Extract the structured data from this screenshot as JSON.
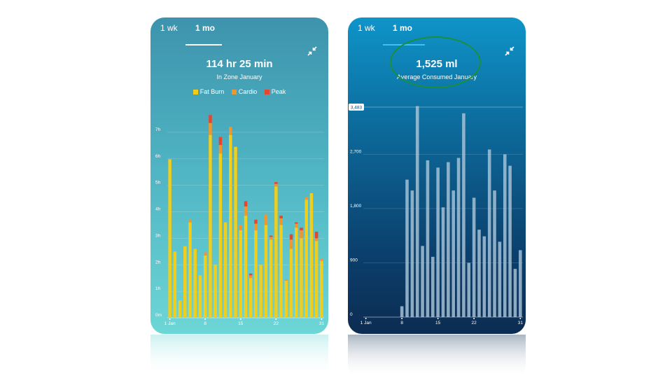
{
  "left_panel": {
    "tabs": [
      "1 wk",
      "1 mo"
    ],
    "headline": "114 hr 25 min",
    "subtitle": "In Zone January",
    "legend": [
      {
        "label": "Fat Burn",
        "color": "#f1cd1c"
      },
      {
        "label": "Cardio",
        "color": "#f0962e"
      },
      {
        "label": "Peak",
        "color": "#e4462f"
      }
    ]
  },
  "right_panel": {
    "tabs": [
      "1 wk",
      "1 mo"
    ],
    "headline": "1,525 ml",
    "subtitle": "Average Consumed January",
    "marker_label": "3,483",
    "bar_color": "#a8c4d8"
  },
  "chart_data": [
    {
      "type": "bar",
      "stacked": true,
      "x": [
        1,
        2,
        3,
        4,
        5,
        6,
        7,
        8,
        9,
        10,
        11,
        12,
        13,
        14,
        15,
        16,
        17,
        18,
        19,
        20,
        21,
        22,
        23,
        24,
        25,
        26,
        27,
        28,
        29,
        30,
        31
      ],
      "series": [
        {
          "name": "Fat Burn",
          "values": [
            5.98,
            2.5,
            0.65,
            2.7,
            3.6,
            2.6,
            1.6,
            2.35,
            6.9,
            2.0,
            6.2,
            3.6,
            6.9,
            6.45,
            3.3,
            3.85,
            1.5,
            3.3,
            2.0,
            3.5,
            2.95,
            4.95,
            3.5,
            1.4,
            2.6,
            3.4,
            3.0,
            4.45,
            4.7,
            2.9,
            2.15
          ]
        },
        {
          "name": "Cardio",
          "values": [
            0,
            0,
            0,
            0,
            0.1,
            0,
            0,
            0.12,
            0.45,
            0,
            0.32,
            0,
            0.3,
            0,
            0.2,
            0.35,
            0.1,
            0.25,
            0,
            0.4,
            0.1,
            0.1,
            0.25,
            0.05,
            0.35,
            0.15,
            0.3,
            0.1,
            0,
            0.1,
            0.07
          ]
        },
        {
          "name": "Peak",
          "values": [
            0,
            0,
            0,
            0,
            0,
            0,
            0,
            0,
            0.3,
            0,
            0.3,
            0,
            0,
            0,
            0,
            0.2,
            0.07,
            0.15,
            0,
            0,
            0.05,
            0.07,
            0.1,
            0,
            0.2,
            0.05,
            0.1,
            0,
            0,
            0.25,
            0
          ]
        }
      ],
      "y_ticks": [
        "0m",
        "1h",
        "2h",
        "3h",
        "4h",
        "5h",
        "6h",
        "7h"
      ],
      "ylim": [
        0,
        7.5
      ],
      "x_tick_labels": [
        {
          "x": 1,
          "label": "1 Jan"
        },
        {
          "x": 8,
          "label": "8"
        },
        {
          "x": 15,
          "label": "15"
        },
        {
          "x": 22,
          "label": "22"
        },
        {
          "x": 31,
          "label": "31"
        }
      ],
      "grid": true
    },
    {
      "type": "bar",
      "x": [
        1,
        2,
        3,
        4,
        5,
        6,
        7,
        8,
        9,
        10,
        11,
        12,
        13,
        14,
        15,
        16,
        17,
        18,
        19,
        20,
        21,
        22,
        23,
        24,
        25,
        26,
        27,
        28,
        29,
        30,
        31
      ],
      "values": [
        0,
        0,
        0,
        0,
        0,
        0,
        0,
        180,
        2280,
        2100,
        3500,
        1180,
        2600,
        1000,
        2480,
        1820,
        2570,
        2100,
        2640,
        3380,
        900,
        1980,
        1450,
        1340,
        2780,
        2100,
        1250,
        2700,
        2510,
        800,
        1110
      ],
      "y_ticks": [
        {
          "value": 0,
          "label": "0"
        },
        {
          "value": 900,
          "label": "900"
        },
        {
          "value": 1800,
          "label": "1,800"
        },
        {
          "value": 2700,
          "label": "2,700"
        }
      ],
      "ylim": [
        0,
        3483
      ],
      "x_tick_labels": [
        {
          "x": 1,
          "label": "1 Jan"
        },
        {
          "x": 8,
          "label": "8"
        },
        {
          "x": 15,
          "label": "15"
        },
        {
          "x": 22,
          "label": "22"
        },
        {
          "x": 31,
          "label": "31"
        }
      ],
      "grid": true
    }
  ]
}
